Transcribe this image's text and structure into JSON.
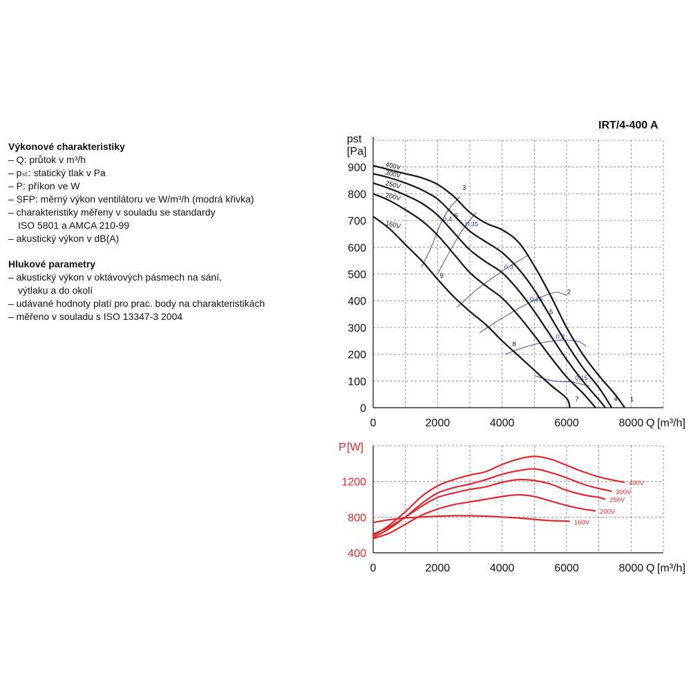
{
  "text": {
    "performance_heading": "Výkonové charakteristiky",
    "performance_items": [
      {
        "text": "– Q: průtok v m³/h",
        "cont": false
      },
      {
        "text": "– pₛₜ: statický tlak v Pa",
        "cont": false
      },
      {
        "text": "– P: příkon ve W",
        "cont": false
      },
      {
        "text": "– SFP: měrný výkon ventilátoru ve W/m³/h (modrá křivka)",
        "cont": false
      },
      {
        "text": "– charakteristiky měřeny v souladu se standardy",
        "cont": false
      },
      {
        "text": "ISO 5801 a AMCA 210-99",
        "cont": true
      },
      {
        "text": "– akustický výkon v dB(A)",
        "cont": false
      }
    ],
    "noise_heading": "Hlukové parametry",
    "noise_items": [
      {
        "text": "– akustický výkon v oktávových pásmech na sání,",
        "cont": false
      },
      {
        "text": "výtlaku a do okolí",
        "cont": true
      },
      {
        "text": "– udávané hodnoty platí pro prac. body na charakteristikách",
        "cont": false
      },
      {
        "text": "– měřeno v souladu s ISO 13347-3 2004",
        "cont": false
      }
    ]
  },
  "model_title": "IRT/4-400 A",
  "colors": {
    "pressure": "#1a1a1a",
    "power": "#e3262d",
    "sfp": "#2f3b8c",
    "grid": "#777777"
  },
  "chart_data": [
    {
      "type": "line",
      "ylabel": "pst",
      "yunit": "[Pa]",
      "xlabel": "Q",
      "xunit": "[m³/h]",
      "xlim": [
        0,
        9000
      ],
      "ylim": [
        0,
        1000
      ],
      "xticks": [
        0,
        2000,
        4000,
        6000,
        8000
      ],
      "yticks": [
        0,
        100,
        200,
        300,
        400,
        500,
        600,
        700,
        800,
        900
      ],
      "grid": true,
      "series": [
        {
          "name": "400V",
          "points": [
            [
              0,
              905
            ],
            [
              500,
              890
            ],
            [
              1000,
              875
            ],
            [
              1500,
              860
            ],
            [
              2000,
              835
            ],
            [
              2500,
              790
            ],
            [
              3000,
              730
            ],
            [
              3500,
              690
            ],
            [
              4000,
              665
            ],
            [
              4500,
              620
            ],
            [
              5000,
              530
            ],
            [
              5500,
              420
            ],
            [
              6000,
              300
            ],
            [
              6500,
              200
            ],
            [
              7000,
              120
            ],
            [
              7500,
              50
            ],
            [
              7800,
              0
            ]
          ]
        },
        {
          "name": "300V",
          "points": [
            [
              0,
              875
            ],
            [
              500,
              860
            ],
            [
              1000,
              840
            ],
            [
              1500,
              815
            ],
            [
              2000,
              780
            ],
            [
              2500,
              720
            ],
            [
              3000,
              660
            ],
            [
              3500,
              620
            ],
            [
              4000,
              580
            ],
            [
              4500,
              520
            ],
            [
              5000,
              440
            ],
            [
              5500,
              340
            ],
            [
              6000,
              240
            ],
            [
              6500,
              150
            ],
            [
              7000,
              75
            ],
            [
              7400,
              0
            ]
          ]
        },
        {
          "name": "250V",
          "points": [
            [
              0,
              840
            ],
            [
              500,
              820
            ],
            [
              1000,
              795
            ],
            [
              1500,
              765
            ],
            [
              2000,
              720
            ],
            [
              2500,
              655
            ],
            [
              3000,
              590
            ],
            [
              3500,
              545
            ],
            [
              4000,
              505
            ],
            [
              4500,
              440
            ],
            [
              5000,
              360
            ],
            [
              5500,
              270
            ],
            [
              6000,
              180
            ],
            [
              6500,
              100
            ],
            [
              7000,
              30
            ],
            [
              7200,
              0
            ]
          ]
        },
        {
          "name": "200V",
          "points": [
            [
              0,
              800
            ],
            [
              500,
              775
            ],
            [
              1000,
              740
            ],
            [
              1500,
              700
            ],
            [
              2000,
              645
            ],
            [
              2500,
              575
            ],
            [
              3000,
              505
            ],
            [
              3500,
              455
            ],
            [
              4000,
              410
            ],
            [
              4500,
              345
            ],
            [
              5000,
              270
            ],
            [
              5500,
              190
            ],
            [
              6000,
              115
            ],
            [
              6500,
              55
            ],
            [
              6900,
              0
            ]
          ]
        },
        {
          "name": "160V",
          "points": [
            [
              0,
              715
            ],
            [
              500,
              670
            ],
            [
              1000,
              610
            ],
            [
              1500,
              550
            ],
            [
              2000,
              480
            ],
            [
              2500,
              415
            ],
            [
              3000,
              360
            ],
            [
              3500,
              310
            ],
            [
              4000,
              250
            ],
            [
              4500,
              195
            ],
            [
              5000,
              140
            ],
            [
              5500,
              85
            ],
            [
              6000,
              35
            ],
            [
              6100,
              0
            ]
          ]
        }
      ],
      "sfp_curves": [
        {
          "label": "0,4",
          "points": [
            [
              1500,
              525
            ],
            [
              1800,
              600
            ],
            [
              2100,
              690
            ],
            [
              2400,
              750
            ],
            [
              2700,
              790
            ]
          ]
        },
        {
          "label": "0,35",
          "points": [
            [
              2000,
              500
            ],
            [
              2400,
              590
            ],
            [
              2800,
              670
            ],
            [
              3200,
              730
            ]
          ]
        },
        {
          "label": "0,3",
          "points": [
            [
              2600,
              375
            ],
            [
              3200,
              440
            ],
            [
              4000,
              510
            ],
            [
              4800,
              570
            ]
          ]
        },
        {
          "label": "0,25",
          "points": [
            [
              3300,
              280
            ],
            [
              4000,
              335
            ],
            [
              4800,
              390
            ],
            [
              5600,
              430
            ],
            [
              6000,
              420
            ]
          ]
        },
        {
          "label": "0,2",
          "points": [
            [
              4100,
              200
            ],
            [
              4800,
              230
            ],
            [
              5600,
              250
            ],
            [
              6300,
              250
            ],
            [
              6600,
              230
            ]
          ]
        },
        {
          "label": "0,15",
          "points": [
            [
              5000,
              120
            ],
            [
              5600,
              100
            ],
            [
              6200,
              95
            ],
            [
              6700,
              80
            ]
          ]
        }
      ],
      "point_labels": [
        {
          "label": "1",
          "x": 7900,
          "y": 20
        },
        {
          "label": "2",
          "x": 5950,
          "y": 420
        },
        {
          "label": "3",
          "x": 2700,
          "y": 810
        },
        {
          "label": "4",
          "x": 7400,
          "y": 20
        },
        {
          "label": "5",
          "x": 5400,
          "y": 345
        },
        {
          "label": "6",
          "x": 2450,
          "y": 705
        },
        {
          "label": "7",
          "x": 6200,
          "y": 20
        },
        {
          "label": "8",
          "x": 4250,
          "y": 225
        },
        {
          "label": "9",
          "x": 2000,
          "y": 480
        }
      ]
    },
    {
      "type": "line",
      "ylabel": "P",
      "yunit": "[W]",
      "xlabel": "Q",
      "xunit": "[m³/h]",
      "xlim": [
        0,
        9000
      ],
      "ylim": [
        400,
        1600
      ],
      "xticks": [
        0,
        2000,
        4000,
        6000,
        8000
      ],
      "yticks": [
        400,
        800,
        1200
      ],
      "grid": true,
      "series": [
        {
          "name": "400V",
          "points": [
            [
              0,
              590
            ],
            [
              500,
              710
            ],
            [
              1000,
              860
            ],
            [
              1500,
              1030
            ],
            [
              2000,
              1150
            ],
            [
              2500,
              1220
            ],
            [
              3000,
              1270
            ],
            [
              3500,
              1310
            ],
            [
              4000,
              1390
            ],
            [
              4500,
              1450
            ],
            [
              5000,
              1480
            ],
            [
              5500,
              1450
            ],
            [
              6000,
              1380
            ],
            [
              6500,
              1310
            ],
            [
              7000,
              1250
            ],
            [
              7500,
              1210
            ],
            [
              7800,
              1190
            ]
          ]
        },
        {
          "name": "300V",
          "points": [
            [
              0,
              570
            ],
            [
              500,
              670
            ],
            [
              1000,
              800
            ],
            [
              1500,
              950
            ],
            [
              2000,
              1070
            ],
            [
              2500,
              1130
            ],
            [
              3000,
              1170
            ],
            [
              3500,
              1220
            ],
            [
              4000,
              1280
            ],
            [
              4500,
              1320
            ],
            [
              5000,
              1340
            ],
            [
              5500,
              1300
            ],
            [
              6000,
              1240
            ],
            [
              6500,
              1170
            ],
            [
              7000,
              1120
            ],
            [
              7400,
              1090
            ]
          ]
        },
        {
          "name": "250V",
          "points": [
            [
              0,
              610
            ],
            [
              500,
              690
            ],
            [
              1000,
              800
            ],
            [
              1500,
              920
            ],
            [
              2000,
              1020
            ],
            [
              2500,
              1070
            ],
            [
              3000,
              1110
            ],
            [
              3500,
              1140
            ],
            [
              4000,
              1190
            ],
            [
              4500,
              1220
            ],
            [
              5000,
              1210
            ],
            [
              5500,
              1170
            ],
            [
              6000,
              1100
            ],
            [
              6500,
              1050
            ],
            [
              7000,
              1020
            ],
            [
              7200,
              1000
            ]
          ]
        },
        {
          "name": "200V",
          "points": [
            [
              0,
              560
            ],
            [
              500,
              620
            ],
            [
              1000,
              720
            ],
            [
              1500,
              820
            ],
            [
              2000,
              890
            ],
            [
              2500,
              940
            ],
            [
              3000,
              970
            ],
            [
              3500,
              1000
            ],
            [
              4000,
              1030
            ],
            [
              4500,
              1050
            ],
            [
              5000,
              1030
            ],
            [
              5500,
              980
            ],
            [
              6000,
              930
            ],
            [
              6500,
              890
            ],
            [
              6900,
              870
            ]
          ]
        },
        {
          "name": "160V",
          "points": [
            [
              0,
              740
            ],
            [
              500,
              770
            ],
            [
              1000,
              790
            ],
            [
              1500,
              800
            ],
            [
              2000,
              810
            ],
            [
              2500,
              815
            ],
            [
              3000,
              815
            ],
            [
              3500,
              810
            ],
            [
              4000,
              800
            ],
            [
              4500,
              790
            ],
            [
              5000,
              775
            ],
            [
              5500,
              760
            ],
            [
              6000,
              755
            ],
            [
              6100,
              750
            ]
          ]
        }
      ]
    }
  ]
}
